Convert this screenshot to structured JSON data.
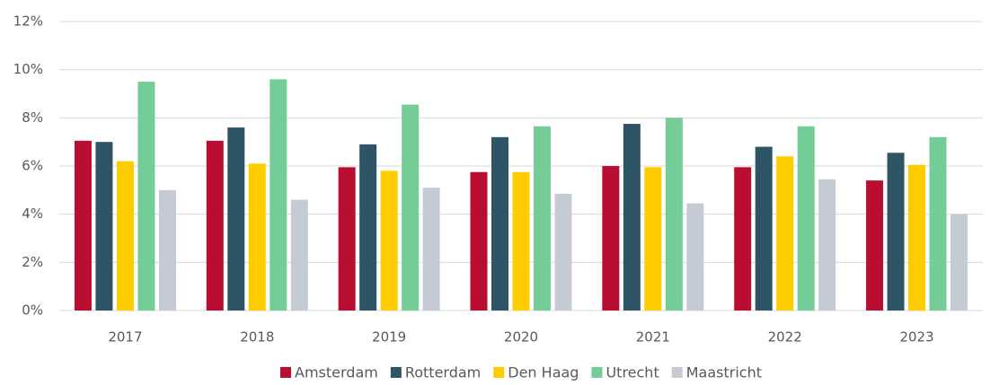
{
  "chart_data": {
    "type": "bar",
    "categories": [
      "2017",
      "2018",
      "2019",
      "2020",
      "2021",
      "2022",
      "2023"
    ],
    "series": [
      {
        "name": "Amsterdam",
        "color": "#b90e31",
        "values": [
          7.05,
          7.05,
          5.95,
          5.75,
          6.0,
          5.95,
          5.4
        ]
      },
      {
        "name": "Rotterdam",
        "color": "#2e5566",
        "values": [
          7.0,
          7.6,
          6.9,
          7.2,
          7.75,
          6.8,
          6.55
        ]
      },
      {
        "name": "Den Haag",
        "color": "#ffcc00",
        "values": [
          6.2,
          6.1,
          5.8,
          5.75,
          5.95,
          6.4,
          6.05
        ]
      },
      {
        "name": "Utrecht",
        "color": "#74cc96",
        "values": [
          9.5,
          9.6,
          8.55,
          7.65,
          8.0,
          7.65,
          7.2
        ]
      },
      {
        "name": "Maastricht",
        "color": "#c4cbd4",
        "values": [
          5.0,
          4.6,
          5.1,
          4.85,
          4.45,
          5.45,
          4.0
        ]
      }
    ],
    "ylim": [
      0,
      12
    ],
    "yticks": [
      {
        "value": 0,
        "label": "0%"
      },
      {
        "value": 2,
        "label": "2%"
      },
      {
        "value": 4,
        "label": "4%"
      },
      {
        "value": 6,
        "label": "6%"
      },
      {
        "value": 8,
        "label": "8%"
      },
      {
        "value": 10,
        "label": "10%"
      },
      {
        "value": 12,
        "label": "12%"
      }
    ],
    "grid": true,
    "legend": "bottom"
  }
}
